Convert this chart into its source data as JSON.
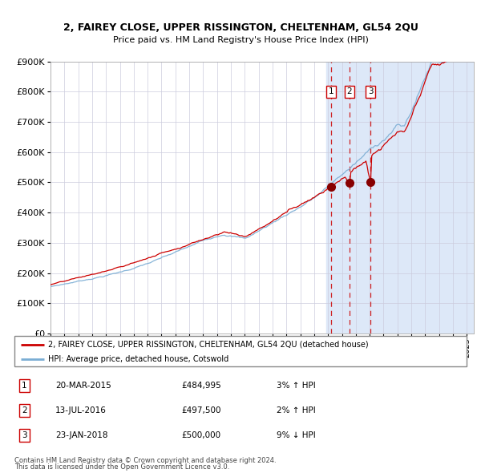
{
  "title1": "2, FAIREY CLOSE, UPPER RISSINGTON, CHELTENHAM, GL54 2QU",
  "title2": "Price paid vs. HM Land Registry's House Price Index (HPI)",
  "legend_red": "2, FAIREY CLOSE, UPPER RISSINGTON, CHELTENHAM, GL54 2QU (detached house)",
  "legend_blue": "HPI: Average price, detached house, Cotswold",
  "sales": [
    {
      "num": 1,
      "date": "20-MAR-2015",
      "price": 484995,
      "pct": "3%",
      "dir": "↑"
    },
    {
      "num": 2,
      "date": "13-JUL-2016",
      "price": 497500,
      "pct": "2%",
      "dir": "↑"
    },
    {
      "num": 3,
      "date": "23-JAN-2018",
      "price": 500000,
      "pct": "9%",
      "dir": "↓"
    }
  ],
  "sale_dates_decimal": [
    2015.22,
    2016.53,
    2018.07
  ],
  "sale_prices": [
    484995,
    497500,
    500000
  ],
  "footer1": "Contains HM Land Registry data © Crown copyright and database right 2024.",
  "footer2": "This data is licensed under the Open Government Licence v3.0.",
  "ylim": [
    0,
    900000
  ],
  "xlim_start": 1995.0,
  "xlim_end": 2025.5,
  "background_chart": "#dde8f8",
  "background_white": "#f0f4fb",
  "line_red": "#cc0000",
  "line_blue": "#7aadd4",
  "marker_color": "#880000",
  "vline_color": "#cc0000",
  "shade_start": 2014.85,
  "shade_end": 2025.5,
  "grid_color": "#ccccdd",
  "spine_color": "#aaaaaa"
}
